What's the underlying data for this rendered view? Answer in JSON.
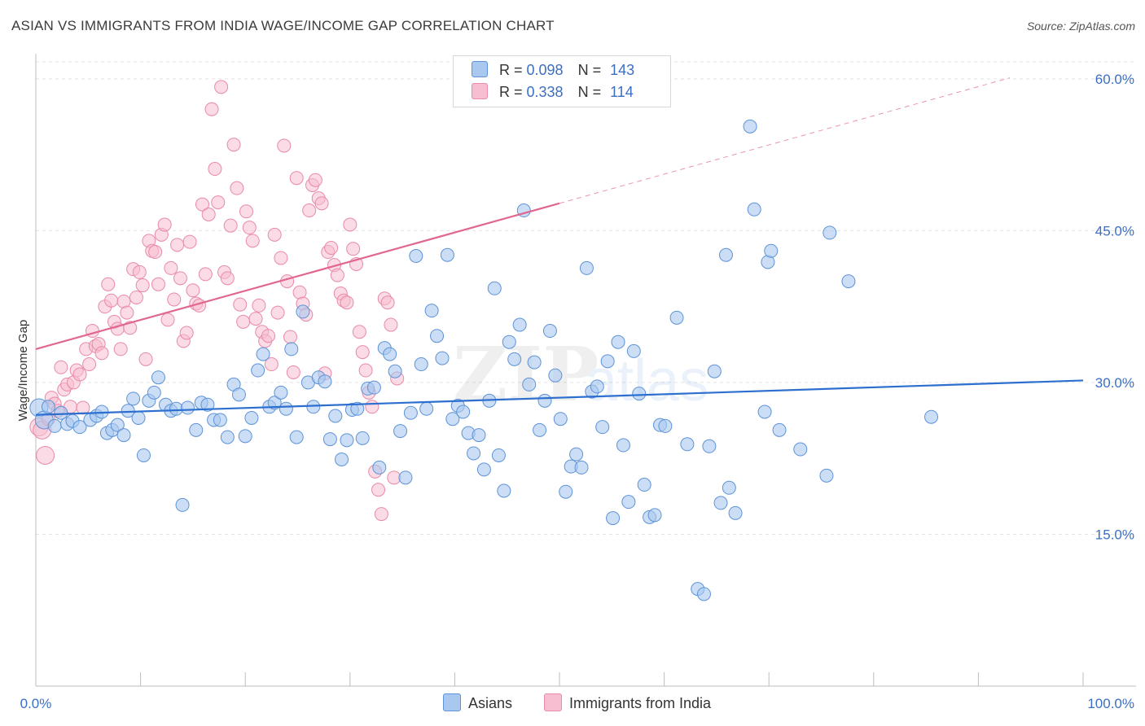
{
  "header": {
    "title": "ASIAN VS IMMIGRANTS FROM INDIA WAGE/INCOME GAP CORRELATION CHART",
    "source": "Source: ZipAtlas.com"
  },
  "legend": {
    "rows": [
      {
        "r_label": "R = ",
        "r_value": "0.098",
        "n_label": "N = ",
        "n_value": "143"
      },
      {
        "r_label": "R = ",
        "r_value": "0.338",
        "n_label": "N = ",
        "n_value": "114"
      }
    ]
  },
  "bottom_legend": {
    "items": [
      {
        "label": "Asians"
      },
      {
        "label": "Immigrants from India"
      }
    ]
  },
  "colors": {
    "blue_fill": "#a9c8ef",
    "blue_stroke": "#5d93d8",
    "blue_line": "#2d6fcf",
    "pink_fill": "#f7bdd0",
    "pink_stroke": "#e88aa8",
    "pink_line": "#e0678f",
    "axis_text": "#3a6fc4",
    "grid": "#e3e3e3"
  },
  "chart_data": {
    "type": "scatter",
    "title": "ASIAN VS IMMIGRANTS FROM INDIA WAGE/INCOME GAP CORRELATION CHART",
    "xlabel": "",
    "ylabel": "Wage/Income Gap",
    "xlim": [
      0,
      100
    ],
    "ylim": [
      0,
      62
    ],
    "x_tick_labels": [
      "0.0%",
      "100.0%"
    ],
    "y_ticks": [
      15,
      30,
      45,
      60
    ],
    "y_tick_labels": [
      "15.0%",
      "30.0%",
      "45.0%",
      "60.0%"
    ],
    "grid": true,
    "legend_position": "top-center",
    "watermark": "ZIPatlas",
    "series": [
      {
        "name": "Asians",
        "color": "#a9c8ef",
        "trend": {
          "x": [
            0,
            100
          ],
          "y": [
            26.8,
            30.2
          ]
        },
        "points": [
          [
            0.3,
            27.5
          ],
          [
            0.8,
            26.3
          ],
          [
            1.2,
            27.6
          ],
          [
            1.8,
            25.7
          ],
          [
            2.4,
            27.0
          ],
          [
            3.0,
            25.9
          ],
          [
            3.5,
            26.2
          ],
          [
            4.2,
            25.6
          ],
          [
            5.2,
            26.3
          ],
          [
            5.8,
            26.7
          ],
          [
            6.3,
            27.1
          ],
          [
            6.8,
            25.0
          ],
          [
            7.3,
            25.3
          ],
          [
            7.8,
            25.8
          ],
          [
            8.4,
            24.8
          ],
          [
            8.8,
            27.2
          ],
          [
            9.3,
            28.4
          ],
          [
            9.8,
            26.5
          ],
          [
            10.3,
            22.8
          ],
          [
            10.8,
            28.2
          ],
          [
            11.3,
            29.0
          ],
          [
            11.7,
            30.5
          ],
          [
            12.4,
            27.8
          ],
          [
            12.9,
            27.2
          ],
          [
            13.4,
            27.4
          ],
          [
            14.0,
            17.9
          ],
          [
            14.5,
            27.5
          ],
          [
            15.3,
            25.3
          ],
          [
            15.8,
            28.0
          ],
          [
            16.4,
            27.8
          ],
          [
            17.0,
            26.3
          ],
          [
            17.6,
            26.3
          ],
          [
            18.3,
            24.6
          ],
          [
            18.9,
            29.8
          ],
          [
            19.4,
            28.8
          ],
          [
            20.0,
            24.7
          ],
          [
            20.6,
            26.5
          ],
          [
            21.2,
            31.2
          ],
          [
            21.7,
            32.8
          ],
          [
            22.3,
            27.6
          ],
          [
            22.8,
            28.0
          ],
          [
            23.4,
            29.0
          ],
          [
            23.9,
            27.4
          ],
          [
            24.4,
            33.3
          ],
          [
            24.9,
            24.6
          ],
          [
            25.5,
            37.0
          ],
          [
            26.0,
            30.0
          ],
          [
            26.5,
            27.6
          ],
          [
            27.0,
            30.5
          ],
          [
            27.6,
            30.1
          ],
          [
            28.1,
            24.4
          ],
          [
            28.6,
            26.7
          ],
          [
            29.2,
            22.4
          ],
          [
            29.7,
            24.3
          ],
          [
            30.2,
            27.3
          ],
          [
            30.7,
            27.4
          ],
          [
            31.2,
            24.5
          ],
          [
            31.7,
            29.4
          ],
          [
            32.3,
            29.5
          ],
          [
            32.8,
            21.6
          ],
          [
            33.3,
            33.4
          ],
          [
            33.8,
            32.8
          ],
          [
            34.3,
            31.1
          ],
          [
            34.8,
            25.2
          ],
          [
            35.3,
            20.6
          ],
          [
            35.8,
            27.0
          ],
          [
            36.3,
            42.5
          ],
          [
            36.8,
            31.8
          ],
          [
            37.3,
            27.4
          ],
          [
            37.8,
            37.1
          ],
          [
            38.3,
            34.6
          ],
          [
            38.8,
            32.4
          ],
          [
            39.3,
            42.6
          ],
          [
            39.8,
            26.4
          ],
          [
            40.3,
            27.7
          ],
          [
            40.8,
            27.1
          ],
          [
            41.3,
            25.0
          ],
          [
            41.8,
            23.0
          ],
          [
            42.3,
            24.8
          ],
          [
            42.8,
            21.4
          ],
          [
            43.3,
            28.2
          ],
          [
            43.8,
            39.3
          ],
          [
            44.2,
            22.8
          ],
          [
            44.7,
            19.3
          ],
          [
            45.2,
            34.0
          ],
          [
            45.7,
            32.3
          ],
          [
            46.2,
            35.7
          ],
          [
            46.6,
            47.0
          ],
          [
            47.1,
            29.8
          ],
          [
            47.6,
            32.0
          ],
          [
            48.1,
            25.3
          ],
          [
            48.6,
            28.2
          ],
          [
            49.1,
            35.1
          ],
          [
            49.6,
            30.7
          ],
          [
            50.1,
            26.4
          ],
          [
            50.6,
            19.2
          ],
          [
            51.1,
            21.7
          ],
          [
            51.6,
            22.9
          ],
          [
            52.1,
            21.6
          ],
          [
            52.6,
            41.3
          ],
          [
            53.1,
            29.1
          ],
          [
            53.6,
            29.6
          ],
          [
            54.1,
            25.6
          ],
          [
            54.6,
            32.1
          ],
          [
            55.1,
            16.6
          ],
          [
            55.6,
            34.0
          ],
          [
            56.1,
            23.8
          ],
          [
            56.6,
            18.2
          ],
          [
            57.1,
            33.1
          ],
          [
            57.6,
            28.9
          ],
          [
            58.1,
            19.9
          ],
          [
            58.6,
            16.7
          ],
          [
            59.1,
            16.9
          ],
          [
            59.6,
            25.8
          ],
          [
            60.1,
            25.7
          ],
          [
            61.2,
            36.4
          ],
          [
            62.2,
            23.9
          ],
          [
            63.2,
            9.6
          ],
          [
            63.8,
            9.1
          ],
          [
            64.3,
            23.7
          ],
          [
            64.8,
            31.1
          ],
          [
            65.4,
            18.1
          ],
          [
            65.9,
            42.6
          ],
          [
            66.2,
            19.6
          ],
          [
            66.8,
            17.1
          ],
          [
            68.2,
            55.3
          ],
          [
            68.6,
            47.1
          ],
          [
            69.6,
            27.1
          ],
          [
            69.9,
            41.9
          ],
          [
            70.2,
            43.0
          ],
          [
            71.0,
            25.3
          ],
          [
            73.0,
            23.4
          ],
          [
            75.5,
            20.8
          ],
          [
            75.8,
            44.8
          ],
          [
            77.6,
            40.0
          ],
          [
            85.5,
            26.6
          ]
        ]
      },
      {
        "name": "Immigrants from India",
        "color": "#f7bdd0",
        "trend": {
          "x": [
            0,
            50
          ],
          "y": [
            33.3,
            47.7
          ]
        },
        "trend_extension": {
          "x": [
            50,
            93
          ],
          "y": [
            47.7,
            60.1
          ]
        },
        "points": [
          [
            0.3,
            25.6
          ],
          [
            0.6,
            25.3
          ],
          [
            0.9,
            22.8
          ],
          [
            1.2,
            26.4
          ],
          [
            1.5,
            28.5
          ],
          [
            1.8,
            27.9
          ],
          [
            2.1,
            27.2
          ],
          [
            2.4,
            31.5
          ],
          [
            2.7,
            29.3
          ],
          [
            3.0,
            29.8
          ],
          [
            3.3,
            27.6
          ],
          [
            3.6,
            30.0
          ],
          [
            3.9,
            31.2
          ],
          [
            4.2,
            30.8
          ],
          [
            4.5,
            27.5
          ],
          [
            4.8,
            33.3
          ],
          [
            5.1,
            31.8
          ],
          [
            5.4,
            35.1
          ],
          [
            5.7,
            33.6
          ],
          [
            6.0,
            33.8
          ],
          [
            6.3,
            32.9
          ],
          [
            6.6,
            37.5
          ],
          [
            6.9,
            39.7
          ],
          [
            7.2,
            38.1
          ],
          [
            7.5,
            36.0
          ],
          [
            7.8,
            35.3
          ],
          [
            8.1,
            33.3
          ],
          [
            8.4,
            38.0
          ],
          [
            8.7,
            36.9
          ],
          [
            9.0,
            35.4
          ],
          [
            9.3,
            41.2
          ],
          [
            9.6,
            38.4
          ],
          [
            9.9,
            40.9
          ],
          [
            10.2,
            39.6
          ],
          [
            10.5,
            32.3
          ],
          [
            10.8,
            44.0
          ],
          [
            11.1,
            43.0
          ],
          [
            11.4,
            42.9
          ],
          [
            11.7,
            39.7
          ],
          [
            12.0,
            44.6
          ],
          [
            12.3,
            45.6
          ],
          [
            12.6,
            36.2
          ],
          [
            12.9,
            41.3
          ],
          [
            13.2,
            38.2
          ],
          [
            13.5,
            43.6
          ],
          [
            13.8,
            40.3
          ],
          [
            14.1,
            34.1
          ],
          [
            14.4,
            34.9
          ],
          [
            14.7,
            43.9
          ],
          [
            15.0,
            39.1
          ],
          [
            15.3,
            37.8
          ],
          [
            15.6,
            37.6
          ],
          [
            15.9,
            47.6
          ],
          [
            16.2,
            40.7
          ],
          [
            16.5,
            46.6
          ],
          [
            16.8,
            57.0
          ],
          [
            17.1,
            51.1
          ],
          [
            17.4,
            47.8
          ],
          [
            17.7,
            59.2
          ],
          [
            18.0,
            40.9
          ],
          [
            18.3,
            40.3
          ],
          [
            18.6,
            45.5
          ],
          [
            18.9,
            53.5
          ],
          [
            19.2,
            49.2
          ],
          [
            19.5,
            37.7
          ],
          [
            19.8,
            36.0
          ],
          [
            20.1,
            46.9
          ],
          [
            20.4,
            45.3
          ],
          [
            20.7,
            44.0
          ],
          [
            21.0,
            36.3
          ],
          [
            21.3,
            37.6
          ],
          [
            21.6,
            35.0
          ],
          [
            21.9,
            34.1
          ],
          [
            22.2,
            34.6
          ],
          [
            22.5,
            31.8
          ],
          [
            22.8,
            44.6
          ],
          [
            23.1,
            36.9
          ],
          [
            23.4,
            42.3
          ],
          [
            23.7,
            53.4
          ],
          [
            24.0,
            40.0
          ],
          [
            24.3,
            34.5
          ],
          [
            24.6,
            31.0
          ],
          [
            24.9,
            50.2
          ],
          [
            25.2,
            38.9
          ],
          [
            25.5,
            37.8
          ],
          [
            25.8,
            36.7
          ],
          [
            26.1,
            47.0
          ],
          [
            26.4,
            49.5
          ],
          [
            26.7,
            50.0
          ],
          [
            27.0,
            48.2
          ],
          [
            27.3,
            47.7
          ],
          [
            27.6,
            30.9
          ],
          [
            27.9,
            42.9
          ],
          [
            28.2,
            43.3
          ],
          [
            28.5,
            41.6
          ],
          [
            28.8,
            40.6
          ],
          [
            29.1,
            38.8
          ],
          [
            29.4,
            38.1
          ],
          [
            29.7,
            37.9
          ],
          [
            30.0,
            45.6
          ],
          [
            30.3,
            43.2
          ],
          [
            30.6,
            41.7
          ],
          [
            30.9,
            35.0
          ],
          [
            31.2,
            33.0
          ],
          [
            31.5,
            31.2
          ],
          [
            31.8,
            29.0
          ],
          [
            32.1,
            27.6
          ],
          [
            32.4,
            21.2
          ],
          [
            32.7,
            19.4
          ],
          [
            33.0,
            17.0
          ],
          [
            33.3,
            38.3
          ],
          [
            33.6,
            37.9
          ],
          [
            33.9,
            35.7
          ],
          [
            34.2,
            20.6
          ],
          [
            34.5,
            30.4
          ]
        ]
      }
    ]
  }
}
